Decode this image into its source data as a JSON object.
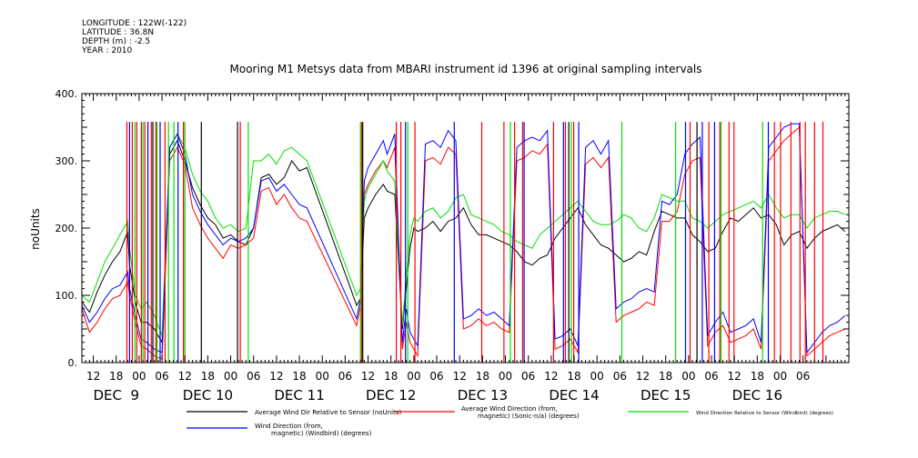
{
  "header": {
    "longitude": "LONGITUDE : 122W(-122)",
    "latitude": "LATITUDE : 36.8N",
    "depth": "DEPTH (m) : -2.5",
    "year": "YEAR : 2010"
  },
  "chart_data": {
    "type": "line",
    "title": "Mooring M1 Metsys data from MBARI instrument id 1396 at original sampling intervals",
    "ylabel": "noUnits",
    "ylim": [
      0,
      400
    ],
    "yticks": [
      0,
      100,
      200,
      300,
      400
    ],
    "yticklabels": [
      "0.",
      "100.",
      "200.",
      "300.",
      "400."
    ],
    "xlim_hours": [
      0,
      201
    ],
    "x_hour_ticks": [
      "12",
      "18",
      "00",
      "06",
      "12",
      "18",
      "00",
      "06",
      "12",
      "18",
      "00",
      "06",
      "12",
      "18",
      "00",
      "06",
      "12",
      "18",
      "00",
      "06",
      "12",
      "18",
      "00",
      "06",
      "12",
      "18",
      "00",
      "06",
      "12",
      "18",
      "00",
      "06"
    ],
    "x_day_labels": [
      "DEC  9",
      "DEC 10",
      "DEC 11",
      "DEC 12",
      "DEC 13",
      "DEC 14",
      "DEC 15",
      "DEC 16"
    ],
    "legend": [
      {
        "label": "Average Wind Dir Relative to Sensor (noUnits)",
        "color": "#000000"
      },
      {
        "label": "Average Wind Direction (from, magnetic) (Sonic-n/a) (degrees)",
        "color": "#ff0000"
      },
      {
        "label": "Wind Direction Relative to Sensor (Windbird) (degrees)",
        "color": "#00e000"
      },
      {
        "label": "Wind Direction (from, magnetic) (Windbird) (degrees)",
        "color": "#0000ff"
      }
    ],
    "series": [
      {
        "name": "Average Wind Dir Relative to Sensor (noUnits)",
        "color": "#000000",
        "x": [
          0,
          2,
          4,
          6,
          8,
          10,
          12,
          12.5,
          14,
          15.5,
          17,
          19,
          21,
          23,
          25,
          27,
          29,
          31,
          33,
          35,
          37,
          39,
          41,
          43,
          45,
          47,
          49,
          51,
          53,
          55,
          57,
          59,
          72,
          73,
          74,
          75,
          77,
          79,
          80,
          82,
          84,
          85,
          86,
          87,
          88,
          90,
          92,
          94,
          96,
          98,
          100,
          102,
          104,
          106,
          108,
          110,
          112,
          114,
          116,
          118,
          120,
          122,
          124,
          126,
          128,
          130,
          132,
          134,
          136,
          138,
          140,
          142,
          144,
          146,
          148,
          150,
          152,
          154,
          156,
          158,
          160,
          162,
          164,
          166,
          168,
          170,
          172,
          174,
          176,
          178,
          180,
          182,
          184,
          186,
          188,
          190,
          192,
          194,
          196,
          198,
          200
        ],
        "y": [
          90,
          75,
          105,
          130,
          150,
          165,
          195,
          145,
          90,
          60,
          60,
          50,
          30,
          310,
          330,
          300,
          260,
          235,
          215,
          205,
          185,
          190,
          180,
          175,
          200,
          275,
          280,
          265,
          275,
          300,
          285,
          290,
          85,
          95,
          215,
          230,
          250,
          265,
          255,
          250,
          50,
          110,
          170,
          200,
          195,
          200,
          210,
          195,
          210,
          215,
          230,
          205,
          190,
          190,
          185,
          180,
          175,
          165,
          150,
          145,
          155,
          160,
          185,
          200,
          215,
          230,
          205,
          190,
          175,
          170,
          160,
          150,
          155,
          165,
          160,
          195,
          225,
          220,
          215,
          215,
          190,
          180,
          165,
          170,
          195,
          215,
          210,
          220,
          230,
          215,
          220,
          205,
          175,
          190,
          195,
          170,
          185,
          195,
          200,
          205,
          195
        ]
      },
      {
        "name": "Average Wind Direction (from, magnetic) (Sonic-n/a) (degrees)",
        "color": "#ff0000",
        "x": [
          0,
          2,
          4,
          6,
          8,
          10,
          12,
          12.5,
          14,
          15.5,
          17,
          19,
          21,
          23,
          25,
          27,
          29,
          31,
          33,
          35,
          37,
          39,
          41,
          43,
          45,
          47,
          49,
          51,
          53,
          55,
          57,
          59,
          72,
          73,
          74,
          75,
          77,
          79,
          80,
          82,
          84,
          85,
          86,
          87,
          88,
          90,
          92,
          94,
          96,
          98,
          100,
          102,
          104,
          106,
          108,
          110,
          112,
          114,
          116,
          118,
          120,
          122,
          124,
          126,
          128,
          130,
          132,
          134,
          136,
          138,
          140,
          142,
          144,
          146,
          148,
          150,
          152,
          154,
          156,
          158,
          160,
          162,
          164,
          166,
          168,
          170,
          172,
          174,
          176,
          178,
          180,
          182,
          184,
          186,
          188,
          190,
          192,
          194,
          196,
          198,
          200
        ],
        "y": [
          80,
          45,
          60,
          80,
          95,
          100,
          120,
          100,
          60,
          25,
          20,
          10,
          5,
          300,
          320,
          295,
          230,
          205,
          185,
          170,
          155,
          175,
          170,
          175,
          185,
          255,
          260,
          235,
          250,
          230,
          215,
          210,
          55,
          85,
          250,
          265,
          285,
          300,
          290,
          320,
          20,
          60,
          30,
          20,
          10,
          300,
          305,
          295,
          320,
          310,
          50,
          55,
          65,
          55,
          60,
          50,
          45,
          300,
          305,
          315,
          310,
          325,
          20,
          25,
          35,
          15,
          295,
          305,
          290,
          305,
          60,
          70,
          75,
          80,
          90,
          85,
          210,
          210,
          225,
          280,
          300,
          305,
          25,
          45,
          55,
          30,
          35,
          40,
          50,
          20,
          300,
          315,
          330,
          340,
          350,
          10,
          20,
          30,
          40,
          45,
          50
        ]
      },
      {
        "name": "Wind Direction Relative to Sensor (Windbird) (degrees)",
        "color": "#00e000",
        "x": [
          0,
          2,
          4,
          6,
          8,
          10,
          12,
          12.5,
          14,
          15.5,
          17,
          19,
          21,
          23,
          25,
          27,
          29,
          31,
          33,
          35,
          37,
          39,
          41,
          43,
          45,
          47,
          49,
          51,
          53,
          55,
          57,
          59,
          72,
          73,
          74,
          75,
          77,
          79,
          80,
          82,
          84,
          85,
          86,
          87,
          88,
          90,
          92,
          94,
          96,
          98,
          100,
          102,
          104,
          106,
          108,
          110,
          112,
          114,
          116,
          118,
          120,
          122,
          124,
          126,
          128,
          130,
          132,
          134,
          136,
          138,
          140,
          142,
          144,
          146,
          148,
          150,
          152,
          154,
          156,
          158,
          160,
          162,
          164,
          166,
          168,
          170,
          172,
          174,
          176,
          178,
          180,
          182,
          184,
          186,
          188,
          190,
          192,
          194,
          196,
          198,
          200
        ],
        "y": [
          100,
          90,
          120,
          150,
          170,
          190,
          210,
          170,
          100,
          80,
          90,
          70,
          40,
          320,
          340,
          320,
          280,
          255,
          240,
          215,
          200,
          205,
          195,
          200,
          300,
          300,
          310,
          295,
          315,
          320,
          310,
          300,
          100,
          110,
          240,
          260,
          280,
          300,
          285,
          270,
          55,
          130,
          190,
          215,
          210,
          225,
          230,
          215,
          225,
          245,
          250,
          220,
          215,
          210,
          205,
          195,
          190,
          180,
          175,
          170,
          190,
          200,
          210,
          220,
          230,
          240,
          225,
          210,
          205,
          205,
          210,
          220,
          215,
          200,
          195,
          215,
          250,
          245,
          240,
          240,
          215,
          210,
          200,
          210,
          220,
          225,
          230,
          235,
          240,
          230,
          250,
          230,
          215,
          220,
          220,
          200,
          215,
          220,
          225,
          225,
          220
        ]
      },
      {
        "name": "Wind Direction (from, magnetic) (Windbird) (degrees)",
        "color": "#0000ff",
        "x": [
          0,
          2,
          4,
          6,
          8,
          10,
          12,
          12.5,
          14,
          15.5,
          17,
          19,
          21,
          23,
          25,
          27,
          29,
          31,
          33,
          35,
          37,
          39,
          41,
          43,
          45,
          47,
          49,
          51,
          53,
          55,
          57,
          59,
          72,
          73,
          74,
          75,
          77,
          79,
          80,
          82,
          84,
          85,
          86,
          87,
          88,
          90,
          92,
          94,
          96,
          98,
          100,
          102,
          104,
          106,
          108,
          110,
          112,
          114,
          116,
          118,
          120,
          122,
          124,
          126,
          128,
          130,
          132,
          134,
          136,
          138,
          140,
          142,
          144,
          146,
          148,
          150,
          152,
          154,
          156,
          158,
          160,
          162,
          164,
          166,
          168,
          170,
          172,
          174,
          176,
          178,
          180,
          182,
          184,
          186,
          188,
          190,
          192,
          194,
          196,
          198,
          200
        ],
        "y": [
          85,
          60,
          75,
          95,
          110,
          115,
          135,
          110,
          70,
          35,
          30,
          20,
          15,
          320,
          340,
          310,
          250,
          225,
          205,
          190,
          175,
          185,
          180,
          185,
          200,
          270,
          275,
          255,
          265,
          250,
          235,
          230,
          65,
          95,
          270,
          290,
          310,
          330,
          310,
          340,
          30,
          80,
          45,
          35,
          25,
          325,
          330,
          320,
          345,
          330,
          65,
          70,
          80,
          70,
          75,
          65,
          55,
          320,
          330,
          335,
          330,
          345,
          35,
          40,
          50,
          25,
          320,
          330,
          310,
          330,
          80,
          90,
          95,
          105,
          110,
          105,
          240,
          235,
          250,
          310,
          325,
          335,
          40,
          60,
          75,
          45,
          50,
          55,
          65,
          30,
          320,
          335,
          350,
          355,
          355,
          15,
          30,
          45,
          55,
          60,
          70
        ]
      }
    ],
    "spikes": [
      {
        "color": "#ff0000",
        "x": [
          11.8,
          13.2,
          14.4,
          15.6,
          16.5,
          18.2,
          19.4,
          21.8,
          26.6,
          41.5,
          73.3,
          82.4,
          83.6,
          87.3,
          104.8,
          110.6,
          113.4,
          115.5,
          123.6,
          126.7,
          128.9,
          159.4,
          164.3,
          167.2,
          169.6,
          170.9,
          181.5,
          183.1,
          185.8,
          188.2,
          189.6,
          192.0,
          194.2
        ]
      },
      {
        "color": "#0000ff",
        "x": [
          12.5,
          17.3,
          20.5,
          25.2,
          84.8,
          97.6,
          115.9,
          126.2,
          130.2,
          158.2,
          162.6,
          165.8,
          179.9
        ]
      },
      {
        "color": "#00e000",
        "x": [
          13.9,
          16.0,
          19.7,
          22.7,
          24.1,
          27.0,
          43.6,
          73.0,
          85.4,
          112.3,
          128.3,
          141.5,
          155.6,
          167.5,
          178.4
        ]
      },
      {
        "color": "#000000",
        "x": [
          18.6,
          31.3,
          40.8,
          73.6,
          127.6,
          161.2
        ]
      }
    ]
  }
}
